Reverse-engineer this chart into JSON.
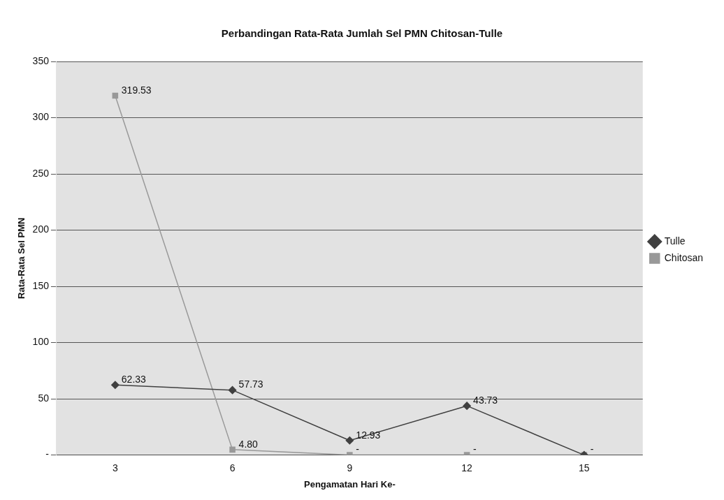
{
  "chart_data": {
    "type": "line",
    "title": "Perbandingan Rata-Rata Jumlah Sel PMN Chitosan-Tulle",
    "xlabel": "Pengamatan Hari Ke-",
    "ylabel": "Rata-Rata Sel PMN",
    "categories": [
      "3",
      "6",
      "9",
      "12",
      "15"
    ],
    "series": [
      {
        "name": "Tulle",
        "color": "#404040",
        "marker": "diamond",
        "values": [
          62.33,
          57.73,
          12.93,
          43.73,
          0
        ],
        "value_labels": [
          "62.33",
          "57.73",
          "12.93",
          "43.73",
          null
        ]
      },
      {
        "name": "Chitosan",
        "color": "#999999",
        "marker": "square",
        "values": [
          319.53,
          4.8,
          0,
          0,
          0
        ],
        "value_labels": [
          "319.53",
          "4.80",
          "-",
          "-",
          "-"
        ]
      }
    ],
    "ylim": [
      0,
      350
    ],
    "yticks": [
      {
        "value": 0,
        "label": "-"
      },
      50,
      100,
      150,
      200,
      250,
      300,
      350
    ],
    "grid": "y",
    "legend": "right"
  }
}
